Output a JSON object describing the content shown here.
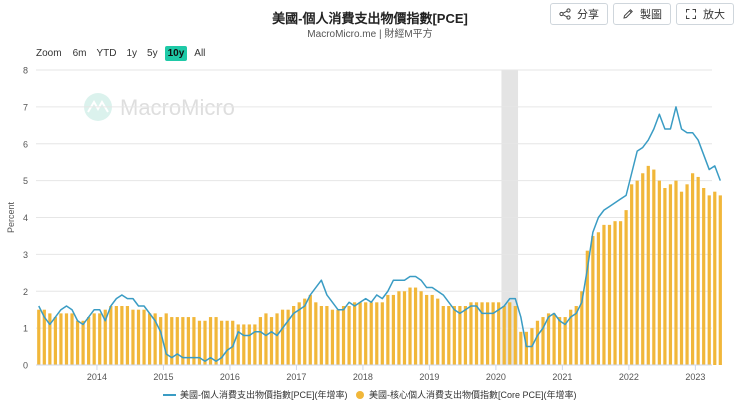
{
  "header": {
    "title": "美國-個人消費支出物價指數[PCE]",
    "subtitle": "MacroMicro.me | 財經M平方"
  },
  "toolbar": {
    "share_label": "分享",
    "draw_label": "製圖",
    "enlarge_label": "放大"
  },
  "zoom": {
    "label": "Zoom",
    "options": [
      "6m",
      "YTD",
      "1y",
      "5y",
      "10y",
      "All"
    ],
    "active": "10y"
  },
  "watermark": "MacroMicro",
  "colors": {
    "pce_line": "#3a9cc4",
    "core_bar": "#f1b73a",
    "recession_band": "#e4e4e4",
    "accent": "#1fc9a7"
  },
  "chart_data": {
    "type": "bar+line",
    "ylabel": "Percent",
    "ylim": [
      0,
      8
    ],
    "yticks": [
      0,
      1,
      2,
      3,
      4,
      5,
      6,
      7,
      8
    ],
    "xticks": [
      "2014",
      "2015",
      "2016",
      "2017",
      "2018",
      "2019",
      "2020",
      "2021",
      "2022",
      "2023"
    ],
    "x_start": "2013-02",
    "x_end": "2023-03",
    "grid": true,
    "legend_position": "bottom",
    "recession_shade": [
      "2020-02",
      "2020-04"
    ],
    "series": [
      {
        "name": "美國-個人消費支出物價指數[PCE](年增率)",
        "kind": "line",
        "values": [
          1.6,
          1.3,
          1.1,
          1.3,
          1.5,
          1.6,
          1.5,
          1.2,
          1.1,
          1.3,
          1.5,
          1.5,
          1.2,
          1.6,
          1.8,
          1.9,
          1.8,
          1.8,
          1.6,
          1.6,
          1.4,
          1.2,
          0.9,
          0.3,
          0.2,
          0.3,
          0.2,
          0.2,
          0.2,
          0.2,
          0.1,
          0.2,
          0.1,
          0.2,
          0.4,
          0.5,
          0.9,
          0.8,
          0.8,
          0.9,
          0.9,
          0.8,
          0.9,
          0.8,
          1.0,
          1.2,
          1.4,
          1.5,
          1.6,
          1.9,
          2.1,
          2.3,
          1.9,
          1.7,
          1.5,
          1.5,
          1.7,
          1.6,
          1.7,
          1.8,
          1.7,
          1.9,
          1.8,
          2.0,
          2.3,
          2.3,
          2.3,
          2.4,
          2.4,
          2.3,
          2.1,
          2.1,
          2.0,
          1.9,
          1.7,
          1.5,
          1.4,
          1.5,
          1.6,
          1.6,
          1.4,
          1.4,
          1.4,
          1.5,
          1.6,
          1.8,
          1.8,
          1.3,
          0.5,
          0.5,
          0.8,
          1.0,
          1.3,
          1.4,
          1.2,
          1.1,
          1.3,
          1.4,
          1.7,
          2.6,
          3.6,
          4.0,
          4.2,
          4.3,
          4.4,
          4.5,
          4.6,
          5.2,
          5.8,
          5.9,
          6.1,
          6.4,
          6.8,
          6.4,
          6.4,
          7.0,
          6.4,
          6.3,
          6.3,
          6.1,
          5.7,
          5.3,
          5.4,
          5.0
        ]
      },
      {
        "name": "美國-核心個人消費支出物價指數[Core PCE](年增率)",
        "kind": "bar",
        "values": [
          1.5,
          1.5,
          1.4,
          1.3,
          1.4,
          1.4,
          1.4,
          1.2,
          1.2,
          1.3,
          1.4,
          1.4,
          1.5,
          1.6,
          1.6,
          1.6,
          1.6,
          1.5,
          1.5,
          1.5,
          1.4,
          1.4,
          1.3,
          1.4,
          1.3,
          1.3,
          1.3,
          1.3,
          1.3,
          1.2,
          1.2,
          1.3,
          1.3,
          1.2,
          1.2,
          1.2,
          1.1,
          1.1,
          1.1,
          1.1,
          1.3,
          1.4,
          1.3,
          1.4,
          1.5,
          1.5,
          1.6,
          1.7,
          1.8,
          1.9,
          1.7,
          1.6,
          1.6,
          1.5,
          1.5,
          1.6,
          1.6,
          1.7,
          1.7,
          1.7,
          1.7,
          1.7,
          1.7,
          1.9,
          1.9,
          2.0,
          2.0,
          2.1,
          2.1,
          2.0,
          1.9,
          1.9,
          1.8,
          1.6,
          1.6,
          1.6,
          1.6,
          1.6,
          1.7,
          1.7,
          1.7,
          1.7,
          1.7,
          1.7,
          1.6,
          1.7,
          1.6,
          0.9,
          0.9,
          1.0,
          1.2,
          1.3,
          1.4,
          1.4,
          1.3,
          1.3,
          1.5,
          1.6,
          2.0,
          3.1,
          3.5,
          3.6,
          3.8,
          3.8,
          3.9,
          3.9,
          4.2,
          4.9,
          5.0,
          5.2,
          5.4,
          5.3,
          5.0,
          4.8,
          4.9,
          5.0,
          4.7,
          4.9,
          5.2,
          5.1,
          4.8,
          4.6,
          4.7,
          4.6
        ]
      }
    ]
  }
}
